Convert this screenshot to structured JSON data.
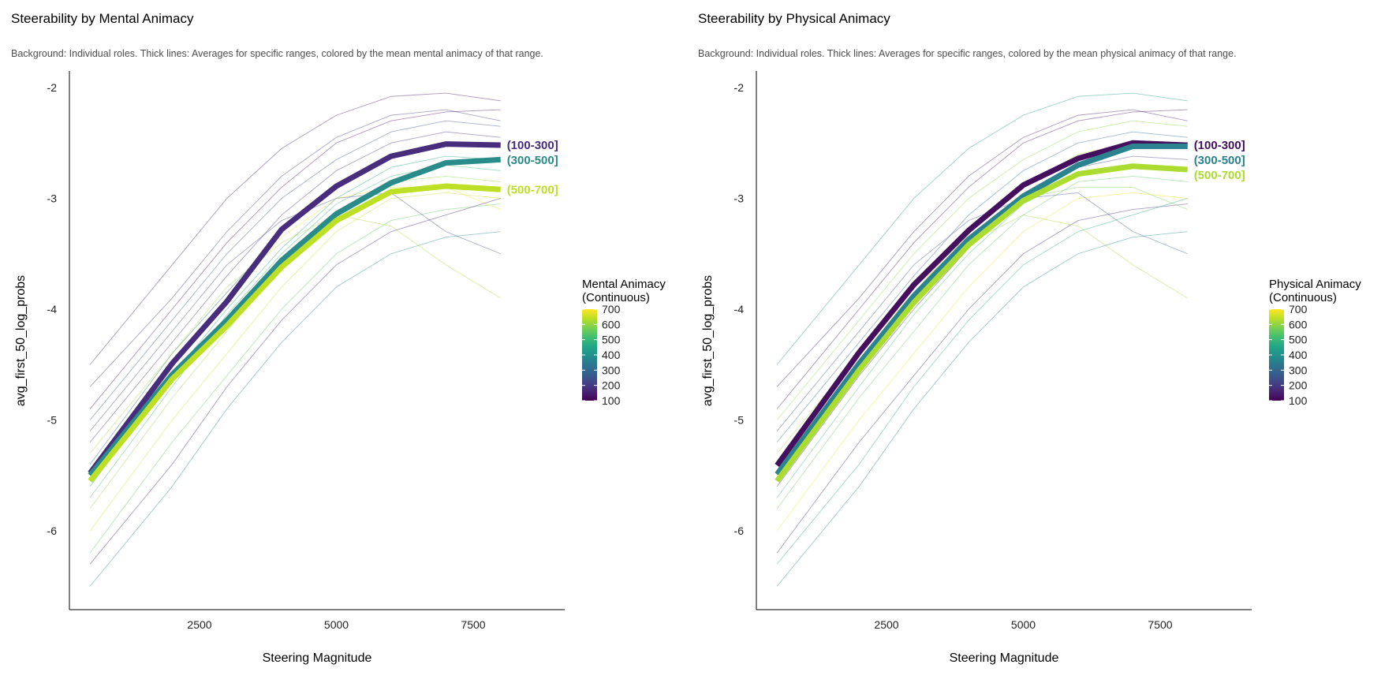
{
  "chart_data": [
    {
      "type": "line",
      "title": "Steerability by Mental Animacy",
      "subtitle": "Background: Individual roles. Thick lines: Averages for specific ranges, colored by the mean mental animacy of that range.",
      "xlabel": "Steering Magnitude",
      "ylabel": "avg_first_50_log_probs",
      "xlim": [
        0,
        9000
      ],
      "ylim": [
        -6.7,
        -1.9
      ],
      "xticks": [
        2500,
        5000,
        7500
      ],
      "yticks": [
        -2,
        -3,
        -4,
        -5,
        -6
      ],
      "grid": false,
      "legend": {
        "title_lines": [
          "Mental Animacy",
          "(Continuous)"
        ],
        "range": [
          100,
          700
        ],
        "ticks": [
          100,
          200,
          300,
          400,
          500,
          600,
          700
        ],
        "colormap": "viridis",
        "placement": "right"
      },
      "x": [
        500,
        2000,
        3000,
        4000,
        5000,
        6000,
        7000,
        8000
      ],
      "series": [
        {
          "name": "(100-300]",
          "color": "#472d7b",
          "values": [
            -5.48,
            -4.49,
            -3.93,
            -3.28,
            -2.89,
            -2.62,
            -2.51,
            -2.52
          ]
        },
        {
          "name": "(300-500]",
          "color": "#2a8c8a",
          "values": [
            -5.5,
            -4.59,
            -4.1,
            -3.56,
            -3.14,
            -2.86,
            -2.68,
            -2.65
          ]
        },
        {
          "name": "(500-700]",
          "color": "#bddf26",
          "values": [
            -5.55,
            -4.63,
            -4.15,
            -3.62,
            -3.2,
            -2.94,
            -2.89,
            -2.92
          ]
        }
      ],
      "background": [
        {
          "animacy": 150,
          "values": [
            -4.5,
            -3.6,
            -3.0,
            -2.55,
            -2.25,
            -2.08,
            -2.05,
            -2.12
          ]
        },
        {
          "animacy": 200,
          "values": [
            -4.7,
            -3.9,
            -3.3,
            -2.8,
            -2.45,
            -2.25,
            -2.2,
            -2.3
          ]
        },
        {
          "animacy": 250,
          "values": [
            -5.0,
            -4.1,
            -3.5,
            -3.0,
            -2.65,
            -2.4,
            -2.3,
            -2.35
          ]
        },
        {
          "animacy": 180,
          "values": [
            -5.2,
            -4.3,
            -3.7,
            -3.15,
            -2.75,
            -2.5,
            -2.4,
            -2.45
          ]
        },
        {
          "animacy": 320,
          "values": [
            -5.4,
            -4.4,
            -3.85,
            -3.3,
            -2.9,
            -2.6,
            -2.5,
            -2.5
          ]
        },
        {
          "animacy": 450,
          "values": [
            -5.6,
            -4.6,
            -4.0,
            -3.45,
            -3.0,
            -2.72,
            -2.62,
            -2.65
          ]
        },
        {
          "animacy": 600,
          "values": [
            -5.8,
            -4.8,
            -4.2,
            -3.6,
            -3.15,
            -2.85,
            -2.8,
            -2.85
          ]
        },
        {
          "animacy": 650,
          "values": [
            -6.0,
            -5.0,
            -4.4,
            -3.8,
            -3.3,
            -3.0,
            -2.95,
            -3.0
          ]
        },
        {
          "animacy": 550,
          "values": [
            -6.2,
            -5.2,
            -4.6,
            -4.0,
            -3.5,
            -3.2,
            -3.1,
            -3.05
          ]
        },
        {
          "animacy": 380,
          "values": [
            -6.5,
            -5.6,
            -4.9,
            -4.3,
            -3.8,
            -3.5,
            -3.35,
            -3.3
          ]
        },
        {
          "animacy": 220,
          "values": [
            -5.1,
            -4.2,
            -3.6,
            -3.2,
            -3.0,
            -2.95,
            -3.3,
            -3.5
          ]
        },
        {
          "animacy": 620,
          "values": [
            -5.3,
            -4.4,
            -3.8,
            -3.4,
            -3.15,
            -3.25,
            -3.6,
            -3.9
          ]
        },
        {
          "animacy": 130,
          "values": [
            -4.9,
            -4.0,
            -3.4,
            -2.9,
            -2.5,
            -2.3,
            -2.22,
            -2.2
          ]
        },
        {
          "animacy": 680,
          "values": [
            -5.5,
            -4.5,
            -3.9,
            -3.35,
            -3.0,
            -2.9,
            -2.9,
            -3.1
          ]
        },
        {
          "animacy": 160,
          "values": [
            -6.3,
            -5.4,
            -4.7,
            -4.1,
            -3.6,
            -3.3,
            -3.15,
            -3.0
          ]
        },
        {
          "animacy": 500,
          "values": [
            -5.7,
            -4.7,
            -4.05,
            -3.5,
            -3.05,
            -2.8,
            -2.7,
            -2.75
          ]
        }
      ]
    },
    {
      "type": "line",
      "title": "Steerability by Physical Animacy",
      "subtitle": "Background: Individual roles. Thick lines: Averages for specific ranges, colored by the mean physical animacy of that range.",
      "xlabel": "Steering Magnitude",
      "ylabel": "avg_first_50_log_probs",
      "xlim": [
        0,
        9000
      ],
      "ylim": [
        -6.7,
        -1.9
      ],
      "xticks": [
        2500,
        5000,
        7500
      ],
      "yticks": [
        -2,
        -3,
        -4,
        -5,
        -6
      ],
      "grid": false,
      "legend": {
        "title_lines": [
          "Physical Animacy",
          "(Continuous)"
        ],
        "range": [
          100,
          700
        ],
        "ticks": [
          100,
          200,
          300,
          400,
          500,
          600,
          700
        ],
        "colormap": "viridis",
        "placement": "right"
      },
      "x": [
        500,
        2000,
        3000,
        4000,
        5000,
        6000,
        7000,
        8000
      ],
      "series": [
        {
          "name": "(100-300]",
          "color": "#44105e",
          "values": [
            -5.41,
            -4.39,
            -3.78,
            -3.29,
            -2.88,
            -2.64,
            -2.5,
            -2.52
          ]
        },
        {
          "name": "(300-500]",
          "color": "#2a838e",
          "values": [
            -5.49,
            -4.49,
            -3.88,
            -3.37,
            -2.98,
            -2.7,
            -2.53,
            -2.53
          ]
        },
        {
          "name": "(500-700]",
          "color": "#addc30",
          "values": [
            -5.55,
            -4.55,
            -3.94,
            -3.42,
            -3.02,
            -2.78,
            -2.71,
            -2.74
          ]
        }
      ],
      "background": [
        {
          "animacy": 420,
          "values": [
            -4.5,
            -3.6,
            -3.0,
            -2.55,
            -2.25,
            -2.08,
            -2.05,
            -2.12
          ]
        },
        {
          "animacy": 150,
          "values": [
            -4.7,
            -3.9,
            -3.3,
            -2.8,
            -2.45,
            -2.25,
            -2.2,
            -2.3
          ]
        },
        {
          "animacy": 600,
          "values": [
            -5.0,
            -4.1,
            -3.5,
            -3.0,
            -2.65,
            -2.4,
            -2.3,
            -2.35
          ]
        },
        {
          "animacy": 300,
          "values": [
            -5.2,
            -4.3,
            -3.7,
            -3.15,
            -2.75,
            -2.5,
            -2.4,
            -2.45
          ]
        },
        {
          "animacy": 650,
          "values": [
            -5.4,
            -4.4,
            -3.85,
            -3.3,
            -2.9,
            -2.6,
            -2.5,
            -2.5
          ]
        },
        {
          "animacy": 200,
          "values": [
            -5.6,
            -4.6,
            -4.0,
            -3.45,
            -3.0,
            -2.72,
            -2.62,
            -2.65
          ]
        },
        {
          "animacy": 550,
          "values": [
            -5.8,
            -4.8,
            -4.2,
            -3.6,
            -3.15,
            -2.85,
            -2.8,
            -2.85
          ]
        },
        {
          "animacy": 680,
          "values": [
            -6.0,
            -5.0,
            -4.4,
            -3.8,
            -3.3,
            -3.0,
            -2.95,
            -3.0
          ]
        },
        {
          "animacy": 180,
          "values": [
            -6.2,
            -5.2,
            -4.6,
            -4.0,
            -3.5,
            -3.2,
            -3.1,
            -3.05
          ]
        },
        {
          "animacy": 380,
          "values": [
            -6.5,
            -5.6,
            -4.9,
            -4.3,
            -3.8,
            -3.5,
            -3.35,
            -3.3
          ]
        },
        {
          "animacy": 250,
          "values": [
            -5.1,
            -4.2,
            -3.6,
            -3.2,
            -3.0,
            -2.95,
            -3.3,
            -3.5
          ]
        },
        {
          "animacy": 620,
          "values": [
            -5.3,
            -4.4,
            -3.8,
            -3.4,
            -3.15,
            -3.25,
            -3.6,
            -3.9
          ]
        },
        {
          "animacy": 130,
          "values": [
            -4.9,
            -4.0,
            -3.4,
            -2.9,
            -2.5,
            -2.3,
            -2.22,
            -2.2
          ]
        },
        {
          "animacy": 580,
          "values": [
            -5.5,
            -4.5,
            -3.9,
            -3.35,
            -3.0,
            -2.9,
            -2.9,
            -3.1
          ]
        },
        {
          "animacy": 470,
          "values": [
            -6.3,
            -5.4,
            -4.7,
            -4.1,
            -3.6,
            -3.3,
            -3.15,
            -3.0
          ]
        },
        {
          "animacy": 520,
          "values": [
            -5.7,
            -4.7,
            -4.05,
            -3.5,
            -3.05,
            -2.8,
            -2.7,
            -2.75
          ]
        }
      ]
    }
  ]
}
